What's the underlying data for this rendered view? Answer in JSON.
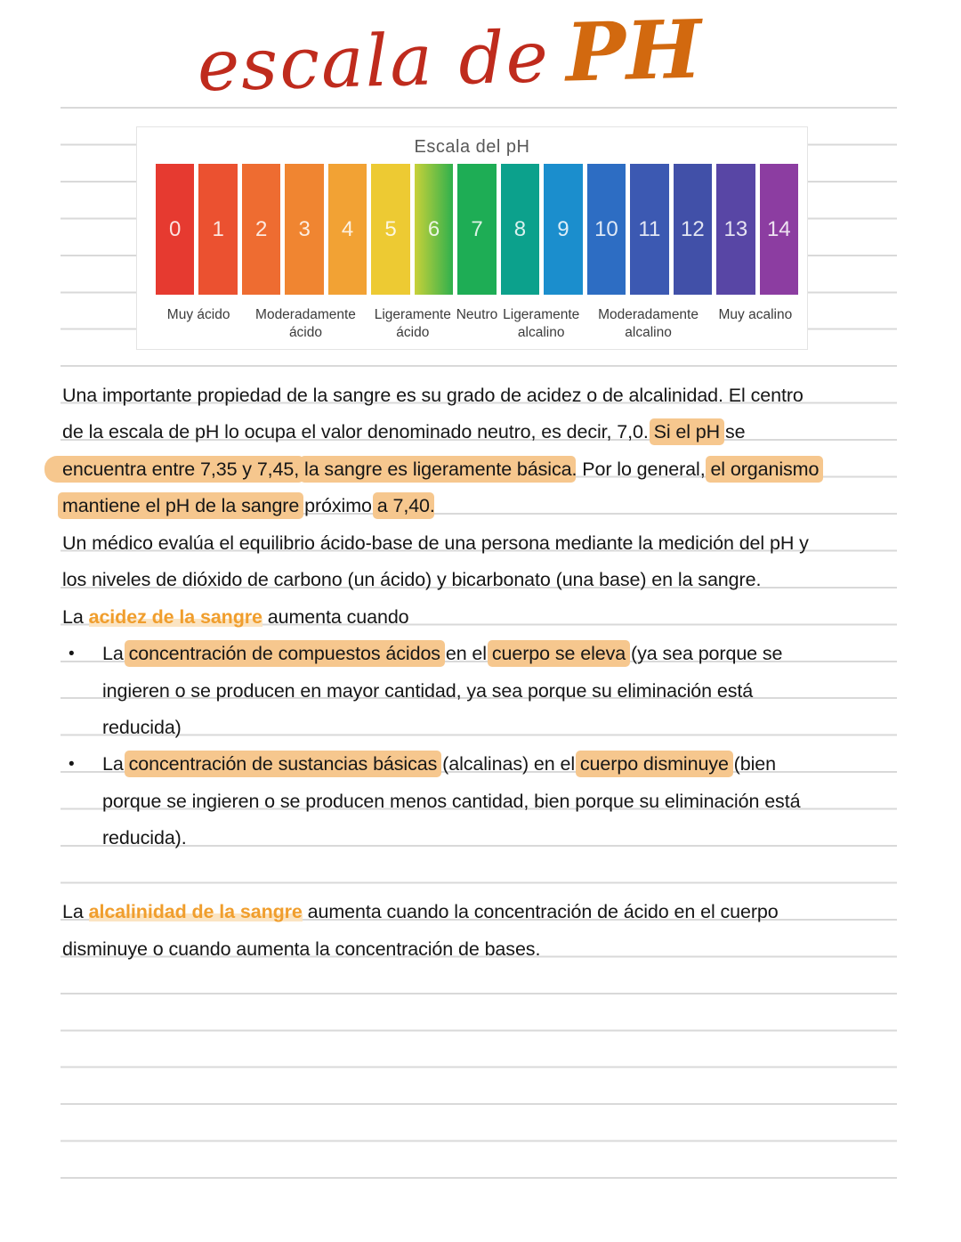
{
  "title": {
    "script": "escala de",
    "accent": "PH"
  },
  "colors": {
    "rule": "#d9d9d9",
    "highlight": "#f6c78e",
    "orange_text": "#f09e2d",
    "orange_pale": "#fbe4c2",
    "title_script": "#bf2b1d",
    "title_accent": "#d2690f"
  },
  "chart": {
    "title": "Escala del pH",
    "bars": [
      {
        "value": "0",
        "color": "#e63a30"
      },
      {
        "value": "1",
        "color": "#eb5130"
      },
      {
        "value": "2",
        "color": "#ee6c31"
      },
      {
        "value": "3",
        "color": "#f08531"
      },
      {
        "value": "4",
        "color": "#f2a234"
      },
      {
        "value": "5",
        "color": "#edca33"
      },
      {
        "value": "6",
        "gradient": [
          "#c8d139",
          "#2fb04d"
        ]
      },
      {
        "value": "7",
        "color": "#1ead55"
      },
      {
        "value": "8",
        "color": "#0ca18c"
      },
      {
        "value": "9",
        "color": "#1b8ecd"
      },
      {
        "value": "10",
        "color": "#2d6dc3"
      },
      {
        "value": "11",
        "color": "#3c59b2"
      },
      {
        "value": "12",
        "color": "#4150a8"
      },
      {
        "value": "13",
        "color": "#5846a5"
      },
      {
        "value": "14",
        "color": "#8c3da1"
      }
    ],
    "labels": [
      {
        "lines": [
          "Muy ácido"
        ],
        "span": 2
      },
      {
        "lines": [
          "Moderadamente",
          "ácido"
        ],
        "span": 3
      },
      {
        "lines": [
          "Ligeramente",
          "ácido"
        ],
        "span": 2
      },
      {
        "lines": [
          "Neutro"
        ],
        "span": 1
      },
      {
        "lines": [
          "Ligeramente",
          "alcalino"
        ],
        "span": 2
      },
      {
        "lines": [
          "Moderadamente",
          "alcalino"
        ],
        "span": 3
      },
      {
        "lines": [
          "Muy acalino"
        ],
        "span": 2
      }
    ]
  },
  "content": {
    "bullet_char": "•",
    "rows": [
      {
        "segments": [
          {
            "t": "Una importante propiedad de la sangre es su grado de acidez o de alcalinidad. El centro",
            "s": "p"
          }
        ]
      },
      {
        "segments": [
          {
            "t": "de la escala de pH lo ocupa el valor denominado neutro, es decir, 7,0. ",
            "s": "p"
          },
          {
            "t": "Si el pH",
            "s": "h"
          },
          {
            "t": " se",
            "s": "p"
          }
        ]
      },
      {
        "segments": [
          {
            "t": "encuentra entre 7,35 y 7,45,",
            "s": "hb"
          },
          {
            "t": " ",
            "s": "p"
          },
          {
            "t": "la sangre es ligeramente básica",
            "s": "h"
          },
          {
            "t": ". Por lo general, ",
            "s": "p"
          },
          {
            "t": "el organismo",
            "s": "h"
          }
        ]
      },
      {
        "segments": [
          {
            "t": "mantiene el pH de la sangre",
            "s": "h"
          },
          {
            "t": " próximo ",
            "s": "p"
          },
          {
            "t": "a 7,40",
            "s": "h"
          },
          {
            "t": ".",
            "s": "p"
          }
        ]
      },
      {
        "segments": [
          {
            "t": "Un médico evalúa el equilibrio ácido-base de una persona mediante la medición del pH y",
            "s": "p"
          }
        ]
      },
      {
        "segments": [
          {
            "t": "los niveles de dióxido de carbono (un ácido) y bicarbonato (una base) en la sangre.",
            "s": "p"
          }
        ]
      },
      {
        "segments": [
          {
            "t": "La ",
            "s": "p"
          },
          {
            "t": "acidez de la sangre",
            "s": "o"
          },
          {
            "t": " aumenta cuando",
            "s": "p"
          }
        ]
      },
      {
        "bullet": true,
        "segments": [
          {
            "t": "La ",
            "s": "p"
          },
          {
            "t": "concentración de compuestos ácidos",
            "s": "h"
          },
          {
            "t": " en el ",
            "s": "p"
          },
          {
            "t": "cuerpo se eleva",
            "s": "h"
          },
          {
            "t": " (ya sea porque se",
            "s": "p"
          }
        ]
      },
      {
        "indent": true,
        "segments": [
          {
            "t": "ingieren o se producen en mayor cantidad, ya sea porque su eliminación está",
            "s": "p"
          }
        ]
      },
      {
        "indent": true,
        "segments": [
          {
            "t": "reducida)",
            "s": "p"
          }
        ]
      },
      {
        "bullet": true,
        "segments": [
          {
            "t": "La ",
            "s": "p"
          },
          {
            "t": "concentración de sustancias básicas",
            "s": "h"
          },
          {
            "t": " (alcalinas) en el ",
            "s": "p"
          },
          {
            "t": "cuerpo disminuye",
            "s": "h"
          },
          {
            "t": " (bien",
            "s": "p"
          }
        ]
      },
      {
        "indent": true,
        "segments": [
          {
            "t": "porque se ingieren o se producen menos cantidad, bien porque su eliminación está",
            "s": "p"
          }
        ]
      },
      {
        "indent": true,
        "segments": [
          {
            "t": "reducida).",
            "s": "p"
          }
        ]
      },
      {
        "empty": true,
        "segments": []
      },
      {
        "segments": [
          {
            "t": "La ",
            "s": "p"
          },
          {
            "t": "alcalinidad de la sangre",
            "s": "o"
          },
          {
            "t": " aumenta cuando la concentración de ácido en el cuerpo",
            "s": "p"
          }
        ]
      },
      {
        "segments": [
          {
            "t": "disminuye o cuando aumenta la concentración de bases.",
            "s": "p"
          }
        ]
      }
    ]
  }
}
